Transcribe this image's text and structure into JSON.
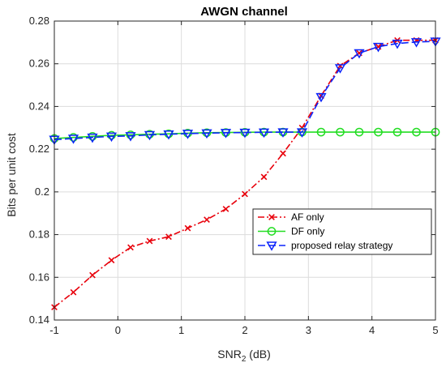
{
  "chart_data": {
    "type": "line",
    "title": "AWGN channel",
    "xlabel_main": "SNR",
    "xlabel_sub": "2",
    "xlabel_unit": " (dB)",
    "ylabel": "Bits per unit cost",
    "xlim": [
      -1,
      5
    ],
    "ylim": [
      0.14,
      0.28
    ],
    "xticks": [
      -1,
      0,
      1,
      2,
      3,
      4,
      5
    ],
    "yticks": [
      0.14,
      0.16,
      0.18,
      0.2,
      0.22,
      0.24,
      0.26,
      0.28
    ],
    "ytick_labels": [
      "0.14",
      "0.16",
      "0.18",
      "0.2",
      "0.22",
      "0.24",
      "0.26",
      "0.28"
    ],
    "grid": true,
    "legend_position": "lower-right",
    "x": [
      -1,
      -0.7,
      -0.4,
      -0.1,
      0.2,
      0.5,
      0.8,
      1.1,
      1.4,
      1.7,
      2.0,
      2.3,
      2.6,
      2.9,
      3.2,
      3.5,
      3.8,
      4.1,
      4.4,
      4.7,
      5.0
    ],
    "series": [
      {
        "name": "AF only",
        "color": "#e8000b",
        "dash": "8,3,2,3",
        "marker": "x",
        "values": [
          0.146,
          0.153,
          0.161,
          0.168,
          0.174,
          0.177,
          0.179,
          0.183,
          0.187,
          0.192,
          0.199,
          0.207,
          0.218,
          0.23,
          0.245,
          0.259,
          0.265,
          0.268,
          0.271,
          0.271,
          0.271
        ]
      },
      {
        "name": "DF only",
        "color": "#22dd22",
        "dash": "",
        "marker": "circle",
        "values": [
          0.225,
          0.2255,
          0.226,
          0.2265,
          0.2267,
          0.227,
          0.2272,
          0.2275,
          0.2277,
          0.2278,
          0.2279,
          0.228,
          0.228,
          0.228,
          0.228,
          0.228,
          0.228,
          0.228,
          0.228,
          0.228,
          0.228
        ]
      },
      {
        "name": "proposed relay strategy",
        "color": "#0b24fb",
        "dash": "9,4",
        "marker": "triangle-down",
        "values": [
          0.2245,
          0.225,
          0.2255,
          0.226,
          0.2262,
          0.2267,
          0.227,
          0.2273,
          0.2275,
          0.2277,
          0.2278,
          0.2279,
          0.228,
          0.228,
          0.2445,
          0.258,
          0.265,
          0.268,
          0.2695,
          0.2702,
          0.2705
        ]
      }
    ]
  }
}
